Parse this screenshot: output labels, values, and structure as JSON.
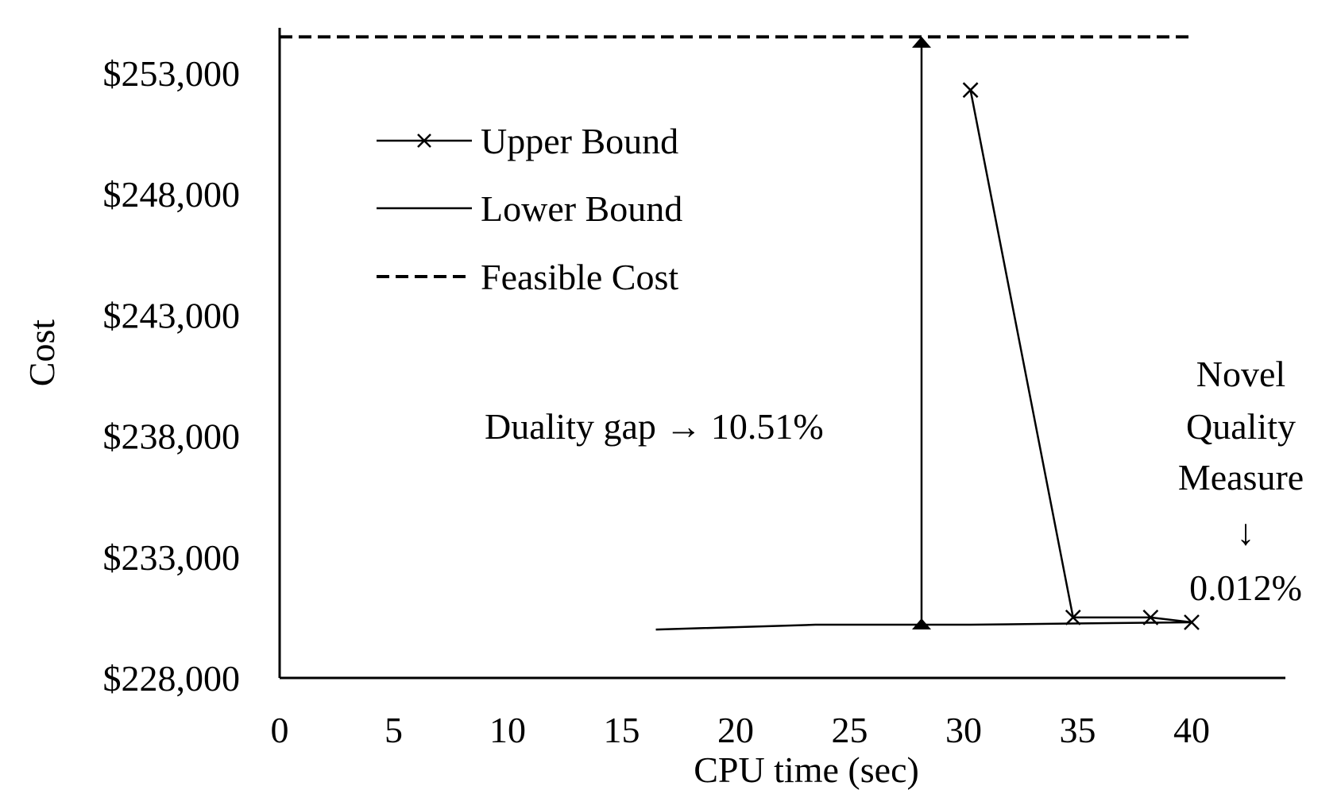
{
  "chart_data": {
    "type": "line",
    "title": "",
    "xlabel": "CPU time (sec)",
    "ylabel": "Cost",
    "xlim": [
      0,
      44
    ],
    "ylim": [
      228000,
      254500
    ],
    "x_ticks": [
      0,
      5,
      10,
      15,
      20,
      25,
      30,
      35,
      40
    ],
    "x_tick_labels": [
      "0",
      "5",
      "10",
      "15",
      "20",
      "25",
      "30",
      "35",
      "40"
    ],
    "y_ticks": [
      228000,
      233000,
      238000,
      243000,
      248000,
      253000
    ],
    "y_tick_labels": [
      "$228,000",
      "$233,000",
      "$238,000",
      "$243,000",
      "$248,000",
      "$253,000"
    ],
    "grid": false,
    "legend_position": "upper-left",
    "series": [
      {
        "name": "Upper Bound",
        "style": "solid-x-markers",
        "x": [
          30.3,
          34.8,
          38.2,
          40.0
        ],
        "y": [
          252300,
          230500,
          230500,
          230300
        ]
      },
      {
        "name": "Lower Bound",
        "style": "solid",
        "x": [
          16.5,
          23.5,
          30.3,
          34.8,
          40.0
        ],
        "y": [
          230000,
          230200,
          230200,
          230250,
          230300
        ]
      },
      {
        "name": "Feasible Cost",
        "style": "dashed",
        "x": [
          0,
          40.0
        ],
        "y": [
          254500,
          254500
        ]
      }
    ],
    "annotations": [
      {
        "id": "duality",
        "text": "Duality gap → 10.51%"
      },
      {
        "id": "novel_1",
        "text": "Novel"
      },
      {
        "id": "novel_2",
        "text": "Quality"
      },
      {
        "id": "novel_3",
        "text": "Measure"
      },
      {
        "id": "novel_arrow",
        "text": "↓"
      },
      {
        "id": "novel_value",
        "text": "0.012%"
      }
    ]
  }
}
